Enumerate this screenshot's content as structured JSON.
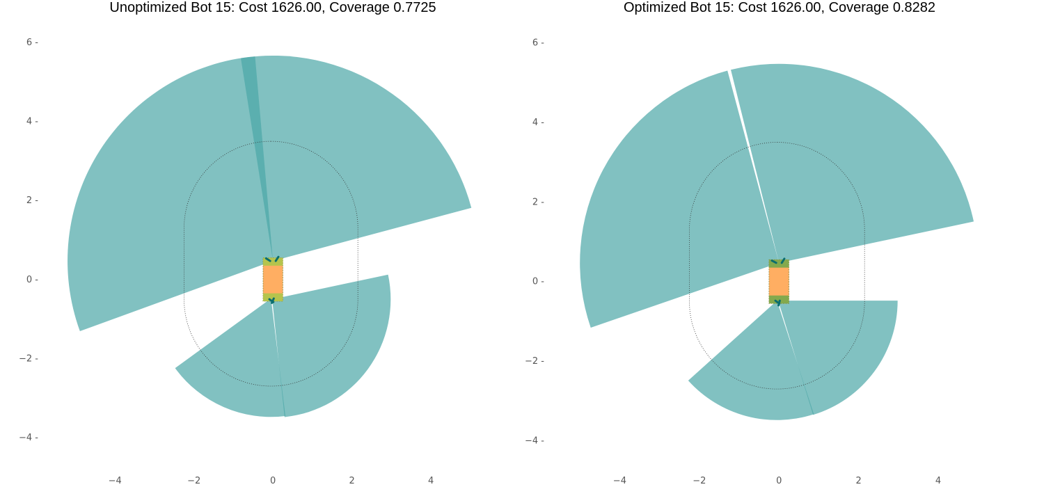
{
  "chart_data": [
    {
      "type": "scatter",
      "title": "Unoptimized Bot 15: Cost 1626.00, Coverage 0.7725",
      "xlabel": "",
      "ylabel": "",
      "xlim": [
        -5.2,
        5.0
      ],
      "ylim": [
        -4.55,
        6.55
      ],
      "x_ticks": [
        -4,
        -2,
        0,
        2,
        4
      ],
      "y_ticks": [
        -4,
        -2,
        0,
        2,
        4,
        6
      ],
      "grid": false,
      "colors": {
        "fov": "#4ca6a6",
        "robot_body": "#ffae62",
        "sensor_mount": "#a8c84a",
        "sensor": "#0b6e6e",
        "path": "#333333"
      },
      "robot": {
        "center": [
          0,
          0
        ],
        "width": 0.5,
        "height": 1.1
      },
      "path": {
        "center": [
          -0.05,
          0.4
        ],
        "half_width": 2.2,
        "half_height": 3.1,
        "corner_radius": 2.2
      },
      "sensors": [
        {
          "position": [
            0,
            0.47
          ],
          "range": 5.2,
          "start_deg": 15,
          "end_deg": 99
        },
        {
          "position": [
            0,
            0.47
          ],
          "range": 5.2,
          "start_deg": 95,
          "end_deg": 200
        },
        {
          "position": [
            -0.05,
            -0.48
          ],
          "range": 3.0,
          "start_deg": 216,
          "end_deg": 277
        },
        {
          "position": [
            -0.02,
            -0.5
          ],
          "range": 3.0,
          "start_deg": 276,
          "end_deg": 372
        }
      ]
    },
    {
      "type": "scatter",
      "title": "Optimized Bot 15: Cost 1626.00, Coverage 0.8282",
      "xlabel": "",
      "ylabel": "",
      "xlim": [
        -5.2,
        5.0
      ],
      "ylim": [
        -4.55,
        6.55
      ],
      "x_ticks": [
        -4,
        -2,
        0,
        2,
        4
      ],
      "y_ticks": [
        -4,
        -2,
        0,
        2,
        4,
        6
      ],
      "grid": false,
      "colors": {
        "fov": "#4ca6a6",
        "robot_body": "#ffae62",
        "sensor_mount": "#6fa84a",
        "sensor": "#0b6e6e",
        "path": "#333333"
      },
      "robot": {
        "center": [
          0,
          0
        ],
        "width": 0.5,
        "height": 1.1
      },
      "path": {
        "center": [
          -0.05,
          0.4
        ],
        "half_width": 2.2,
        "half_height": 3.1,
        "corner_radius": 2.2
      },
      "sensors": [
        {
          "position": [
            0,
            0.47
          ],
          "range": 5.0,
          "start_deg": 12,
          "end_deg": 104
        },
        {
          "position": [
            0,
            0.47
          ],
          "range": 5.0,
          "start_deg": 105,
          "end_deg": 199
        },
        {
          "position": [
            -0.05,
            -0.48
          ],
          "range": 3.0,
          "start_deg": 222,
          "end_deg": 288
        },
        {
          "position": [
            -0.02,
            -0.48
          ],
          "range": 3.0,
          "start_deg": 287,
          "end_deg": 360
        }
      ]
    }
  ]
}
